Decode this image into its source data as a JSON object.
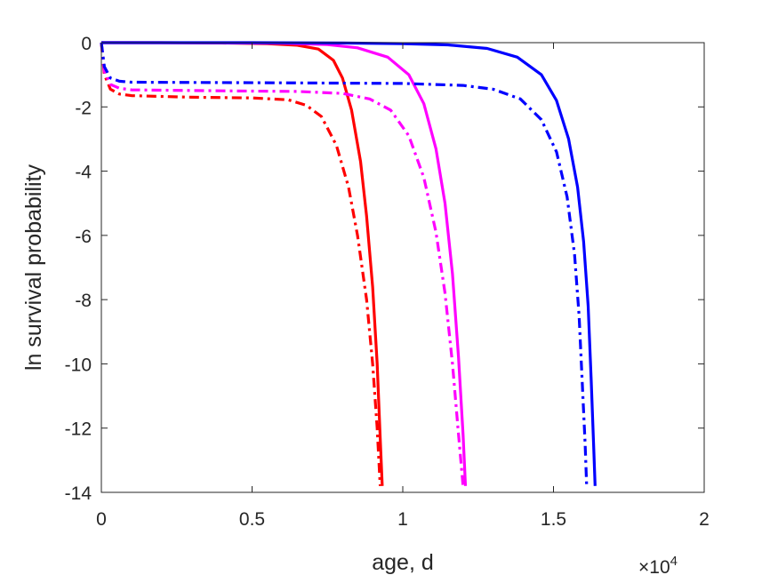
{
  "chart_data": {
    "type": "line",
    "title": "",
    "xlabel": "age, d",
    "ylabel": "ln survival probability",
    "x_exponent_label": "×10",
    "x_exponent_power": "4",
    "xlim": [
      0,
      20000
    ],
    "ylim": [
      -14,
      0
    ],
    "x_ticks": [
      0,
      5000,
      10000,
      15000,
      20000
    ],
    "x_tick_labels": [
      "0",
      "0.5",
      "1",
      "1.5",
      "2"
    ],
    "y_ticks": [
      0,
      -2,
      -4,
      -6,
      -8,
      -10,
      -12,
      -14
    ],
    "y_tick_labels": [
      "0",
      "-2",
      "-4",
      "-6",
      "-8",
      "-10",
      "-12",
      "-14"
    ],
    "grid": false,
    "box": true,
    "colors": {
      "red": "#ff0000",
      "magenta": "#ff00ff",
      "blue": "#0000ff",
      "axis": "#262626"
    },
    "series": [
      {
        "color": "#ff0000",
        "style": "solid",
        "points": [
          [
            0,
            0
          ],
          [
            2000,
            0
          ],
          [
            4000,
            -0.01
          ],
          [
            5500,
            -0.03
          ],
          [
            6500,
            -0.08
          ],
          [
            7200,
            -0.2
          ],
          [
            7700,
            -0.55
          ],
          [
            8000,
            -1.1
          ],
          [
            8300,
            -2.1
          ],
          [
            8600,
            -3.7
          ],
          [
            8800,
            -5.4
          ],
          [
            9000,
            -7.6
          ],
          [
            9150,
            -10
          ],
          [
            9250,
            -12.3
          ],
          [
            9320,
            -13.8
          ]
        ]
      },
      {
        "color": "#ff0000",
        "style": "dashdot",
        "points": [
          [
            0,
            0
          ],
          [
            100,
            -1.0
          ],
          [
            300,
            -1.45
          ],
          [
            600,
            -1.6
          ],
          [
            1000,
            -1.65
          ],
          [
            3000,
            -1.7
          ],
          [
            5000,
            -1.72
          ],
          [
            6200,
            -1.78
          ],
          [
            6800,
            -1.95
          ],
          [
            7300,
            -2.3
          ],
          [
            7800,
            -3.2
          ],
          [
            8200,
            -4.5
          ],
          [
            8500,
            -6.0
          ],
          [
            8800,
            -8.0
          ],
          [
            9000,
            -10.0
          ],
          [
            9150,
            -12.0
          ],
          [
            9250,
            -13.8
          ]
        ]
      },
      {
        "color": "#ff00ff",
        "style": "solid",
        "points": [
          [
            0,
            0
          ],
          [
            4000,
            -0.005
          ],
          [
            6000,
            -0.02
          ],
          [
            7500,
            -0.06
          ],
          [
            8500,
            -0.16
          ],
          [
            9500,
            -0.45
          ],
          [
            10200,
            -1.0
          ],
          [
            10700,
            -1.9
          ],
          [
            11100,
            -3.3
          ],
          [
            11400,
            -5.0
          ],
          [
            11650,
            -7.2
          ],
          [
            11850,
            -9.8
          ],
          [
            12000,
            -12.2
          ],
          [
            12080,
            -13.8
          ]
        ]
      },
      {
        "color": "#ff00ff",
        "style": "dashdot",
        "points": [
          [
            0,
            0
          ],
          [
            100,
            -0.9
          ],
          [
            300,
            -1.3
          ],
          [
            600,
            -1.42
          ],
          [
            1000,
            -1.47
          ],
          [
            4000,
            -1.5
          ],
          [
            6500,
            -1.52
          ],
          [
            8000,
            -1.58
          ],
          [
            8900,
            -1.75
          ],
          [
            9600,
            -2.1
          ],
          [
            10200,
            -2.9
          ],
          [
            10700,
            -4.2
          ],
          [
            11100,
            -5.9
          ],
          [
            11400,
            -7.8
          ],
          [
            11650,
            -10.0
          ],
          [
            11850,
            -12.2
          ],
          [
            12000,
            -13.8
          ]
        ]
      },
      {
        "color": "#0000ff",
        "style": "solid",
        "points": [
          [
            0,
            0
          ],
          [
            5000,
            0
          ],
          [
            8000,
            -0.01
          ],
          [
            10000,
            -0.03
          ],
          [
            11500,
            -0.07
          ],
          [
            12800,
            -0.18
          ],
          [
            13800,
            -0.45
          ],
          [
            14600,
            -1.0
          ],
          [
            15100,
            -1.8
          ],
          [
            15500,
            -3.0
          ],
          [
            15800,
            -4.5
          ],
          [
            16000,
            -6.2
          ],
          [
            16150,
            -8.2
          ],
          [
            16250,
            -10.5
          ],
          [
            16330,
            -12.5
          ],
          [
            16380,
            -13.8
          ]
        ]
      },
      {
        "color": "#0000ff",
        "style": "dashdot",
        "points": [
          [
            0,
            0
          ],
          [
            100,
            -0.75
          ],
          [
            300,
            -1.1
          ],
          [
            600,
            -1.2
          ],
          [
            1000,
            -1.23
          ],
          [
            6000,
            -1.25
          ],
          [
            10000,
            -1.27
          ],
          [
            12000,
            -1.33
          ],
          [
            13000,
            -1.45
          ],
          [
            13900,
            -1.75
          ],
          [
            14600,
            -2.4
          ],
          [
            15100,
            -3.4
          ],
          [
            15450,
            -4.8
          ],
          [
            15700,
            -6.6
          ],
          [
            15850,
            -8.5
          ],
          [
            15950,
            -10.5
          ],
          [
            16050,
            -12.5
          ],
          [
            16100,
            -13.8
          ]
        ]
      }
    ]
  }
}
